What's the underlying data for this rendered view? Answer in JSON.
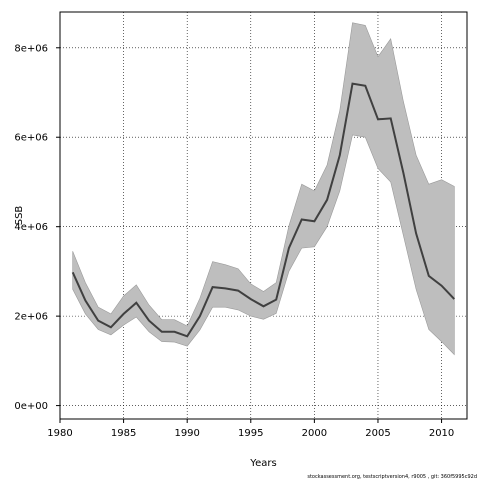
{
  "chart_data": {
    "type": "line",
    "xlabel": "Years",
    "ylabel": "SSB",
    "xlim": [
      1980,
      2012
    ],
    "ylim": [
      -300000,
      8800000
    ],
    "x_ticks": [
      1980,
      1985,
      1990,
      1995,
      2000,
      2005,
      2010
    ],
    "x_tick_labels": [
      "1980",
      "1985",
      "1990",
      "1995",
      "2000",
      "2005",
      "2010"
    ],
    "y_ticks": [
      0,
      2000000,
      4000000,
      6000000,
      8000000
    ],
    "y_tick_labels": [
      "0e+00",
      "2e+06",
      "4e+06",
      "6e+06",
      "8e+06"
    ],
    "grid": true,
    "grid_style": "dotted",
    "band_color": "#bebebe",
    "line_color": "#404040",
    "x": [
      1981,
      1982,
      1983,
      1984,
      1985,
      1986,
      1987,
      1988,
      1989,
      1990,
      1991,
      1992,
      1993,
      1994,
      1995,
      1996,
      1997,
      1998,
      1999,
      2000,
      2001,
      2002,
      2003,
      2004,
      2005,
      2006,
      2007,
      2008,
      2009,
      2010,
      2011
    ],
    "series": [
      {
        "values": [
          2980000,
          2350000,
          1900000,
          1750000,
          2050000,
          2300000,
          1900000,
          1650000,
          1650000,
          1550000,
          2000000,
          2650000,
          2620000,
          2570000,
          2380000,
          2220000,
          2370000,
          3520000,
          4160000,
          4120000,
          4600000,
          5600000,
          7200000,
          7150000,
          6400000,
          6420000,
          5200000,
          3850000,
          2900000,
          2680000,
          2380000
        ],
        "lower": [
          2600000,
          2050000,
          1700000,
          1580000,
          1800000,
          1980000,
          1650000,
          1430000,
          1420000,
          1330000,
          1690000,
          2200000,
          2200000,
          2140000,
          2000000,
          1930000,
          2060000,
          3000000,
          3520000,
          3550000,
          4000000,
          4800000,
          6050000,
          6000000,
          5300000,
          5000000,
          3800000,
          2600000,
          1700000,
          1430000,
          1140000
        ],
        "upper": [
          3450000,
          2750000,
          2200000,
          2050000,
          2450000,
          2700000,
          2250000,
          1920000,
          1920000,
          1780000,
          2400000,
          3220000,
          3150000,
          3060000,
          2720000,
          2550000,
          2750000,
          4020000,
          4950000,
          4800000,
          5380000,
          6600000,
          8560000,
          8500000,
          7800000,
          8200000,
          6800000,
          5600000,
          4950000,
          5050000,
          4900000
        ]
      }
    ],
    "footnote": "stockassessment.org, testscriptversion4, r9005 , git: 360f5995c92d"
  }
}
